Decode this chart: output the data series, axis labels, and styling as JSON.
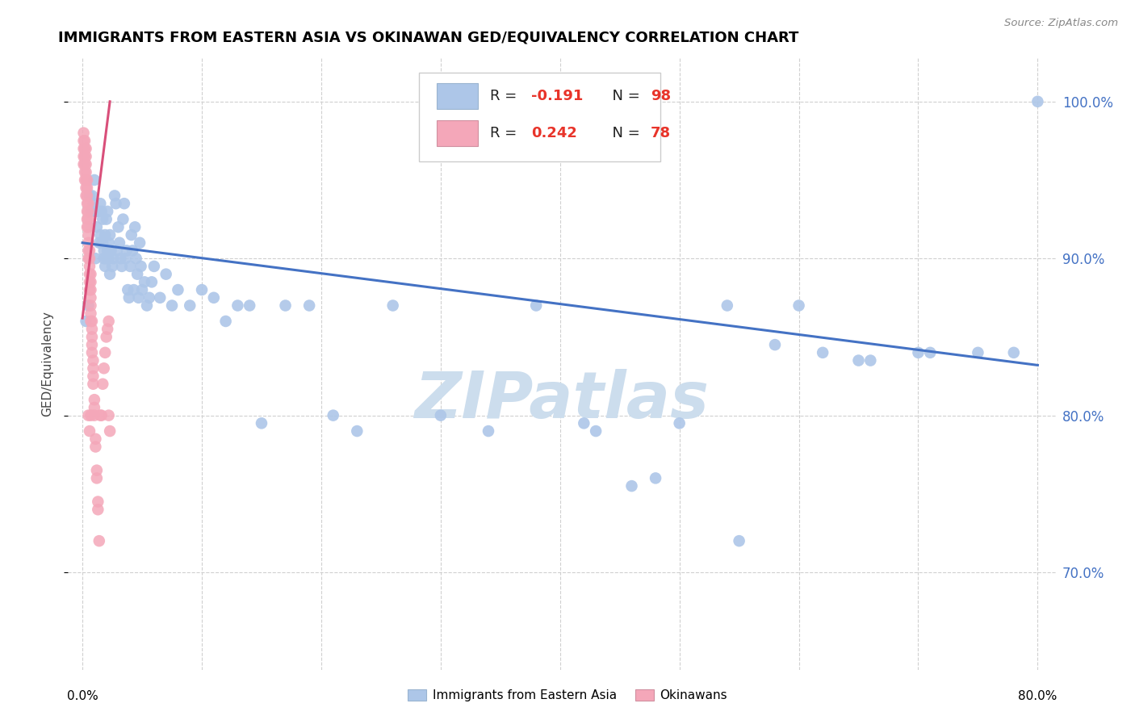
{
  "title": "IMMIGRANTS FROM EASTERN ASIA VS OKINAWAN GED/EQUIVALENCY CORRELATION CHART",
  "source": "Source: ZipAtlas.com",
  "ylabel": "GED/Equivalency",
  "ytick_vals": [
    1.0,
    0.9,
    0.8,
    0.7
  ],
  "ytick_labels": [
    "100.0%",
    "90.0%",
    "80.0%",
    "70.0%"
  ],
  "xtick_vals": [
    0.0,
    0.1,
    0.2,
    0.3,
    0.4,
    0.5,
    0.6,
    0.7,
    0.8
  ],
  "xlim": [
    -0.012,
    0.815
  ],
  "ylim": [
    0.638,
    1.028
  ],
  "blue_color": "#adc6e8",
  "blue_edge_color": "#adc6e8",
  "blue_line_color": "#4472c4",
  "pink_color": "#f4a7b9",
  "pink_edge_color": "#f4a7b9",
  "pink_line_color": "#d94f7a",
  "legend_blue_fill": "#adc6e8",
  "legend_pink_fill": "#f4a7b9",
  "watermark": "ZIPatlas",
  "watermark_color": "#ccdded",
  "blue_trend_x": [
    0.0,
    0.8
  ],
  "blue_trend_y": [
    0.91,
    0.832
  ],
  "pink_trend_x": [
    0.0,
    0.023
  ],
  "pink_trend_y": [
    0.862,
    1.0
  ],
  "blue_x": [
    0.003,
    0.005,
    0.006,
    0.007,
    0.008,
    0.009,
    0.01,
    0.01,
    0.011,
    0.012,
    0.013,
    0.014,
    0.015,
    0.015,
    0.016,
    0.016,
    0.017,
    0.017,
    0.018,
    0.018,
    0.019,
    0.019,
    0.02,
    0.02,
    0.021,
    0.021,
    0.022,
    0.022,
    0.023,
    0.023,
    0.024,
    0.025,
    0.026,
    0.027,
    0.028,
    0.029,
    0.03,
    0.031,
    0.032,
    0.033,
    0.034,
    0.035,
    0.036,
    0.037,
    0.038,
    0.039,
    0.04,
    0.041,
    0.042,
    0.043,
    0.044,
    0.045,
    0.046,
    0.047,
    0.048,
    0.049,
    0.05,
    0.052,
    0.054,
    0.056,
    0.058,
    0.06,
    0.065,
    0.07,
    0.075,
    0.08,
    0.09,
    0.1,
    0.11,
    0.12,
    0.13,
    0.14,
    0.15,
    0.17,
    0.19,
    0.21,
    0.23,
    0.26,
    0.3,
    0.34,
    0.38,
    0.42,
    0.46,
    0.5,
    0.54,
    0.58,
    0.62,
    0.66,
    0.7,
    0.75,
    0.78,
    0.8,
    0.71,
    0.65,
    0.6,
    0.55,
    0.48,
    0.43
  ],
  "blue_y": [
    0.86,
    0.87,
    0.94,
    0.93,
    0.94,
    0.935,
    0.93,
    0.95,
    0.9,
    0.92,
    0.93,
    0.91,
    0.915,
    0.935,
    0.91,
    0.93,
    0.91,
    0.925,
    0.905,
    0.9,
    0.915,
    0.895,
    0.9,
    0.925,
    0.905,
    0.93,
    0.9,
    0.91,
    0.89,
    0.915,
    0.905,
    0.895,
    0.9,
    0.94,
    0.935,
    0.905,
    0.92,
    0.91,
    0.9,
    0.895,
    0.925,
    0.935,
    0.9,
    0.905,
    0.88,
    0.875,
    0.895,
    0.915,
    0.905,
    0.88,
    0.92,
    0.9,
    0.89,
    0.875,
    0.91,
    0.895,
    0.88,
    0.885,
    0.87,
    0.875,
    0.885,
    0.895,
    0.875,
    0.89,
    0.87,
    0.88,
    0.87,
    0.88,
    0.875,
    0.86,
    0.87,
    0.87,
    0.795,
    0.87,
    0.87,
    0.8,
    0.79,
    0.87,
    0.8,
    0.79,
    0.87,
    0.795,
    0.755,
    0.795,
    0.87,
    0.845,
    0.84,
    0.835,
    0.84,
    0.84,
    0.84,
    1.0,
    0.84,
    0.835,
    0.87,
    0.72,
    0.76,
    0.79
  ],
  "pink_x": [
    0.001,
    0.001,
    0.001,
    0.001,
    0.001,
    0.002,
    0.002,
    0.002,
    0.002,
    0.002,
    0.002,
    0.003,
    0.003,
    0.003,
    0.003,
    0.003,
    0.003,
    0.003,
    0.004,
    0.004,
    0.004,
    0.004,
    0.004,
    0.004,
    0.004,
    0.005,
    0.005,
    0.005,
    0.005,
    0.005,
    0.005,
    0.005,
    0.005,
    0.006,
    0.006,
    0.006,
    0.006,
    0.006,
    0.006,
    0.007,
    0.007,
    0.007,
    0.007,
    0.007,
    0.007,
    0.007,
    0.008,
    0.008,
    0.008,
    0.008,
    0.008,
    0.009,
    0.009,
    0.009,
    0.009,
    0.01,
    0.01,
    0.01,
    0.011,
    0.011,
    0.012,
    0.012,
    0.013,
    0.013,
    0.014,
    0.015,
    0.016,
    0.017,
    0.018,
    0.019,
    0.02,
    0.021,
    0.022,
    0.022,
    0.023,
    0.005,
    0.006,
    0.007
  ],
  "pink_y": [
    0.96,
    0.965,
    0.97,
    0.975,
    0.98,
    0.95,
    0.955,
    0.96,
    0.965,
    0.97,
    0.975,
    0.94,
    0.945,
    0.95,
    0.955,
    0.96,
    0.965,
    0.97,
    0.92,
    0.925,
    0.93,
    0.935,
    0.94,
    0.945,
    0.95,
    0.9,
    0.905,
    0.91,
    0.915,
    0.92,
    0.925,
    0.93,
    0.935,
    0.88,
    0.885,
    0.89,
    0.895,
    0.9,
    0.905,
    0.86,
    0.865,
    0.87,
    0.875,
    0.88,
    0.885,
    0.89,
    0.84,
    0.845,
    0.85,
    0.855,
    0.86,
    0.82,
    0.825,
    0.83,
    0.835,
    0.8,
    0.805,
    0.81,
    0.78,
    0.785,
    0.76,
    0.765,
    0.74,
    0.745,
    0.72,
    0.8,
    0.8,
    0.82,
    0.83,
    0.84,
    0.85,
    0.855,
    0.86,
    0.8,
    0.79,
    0.8,
    0.79,
    0.8
  ]
}
